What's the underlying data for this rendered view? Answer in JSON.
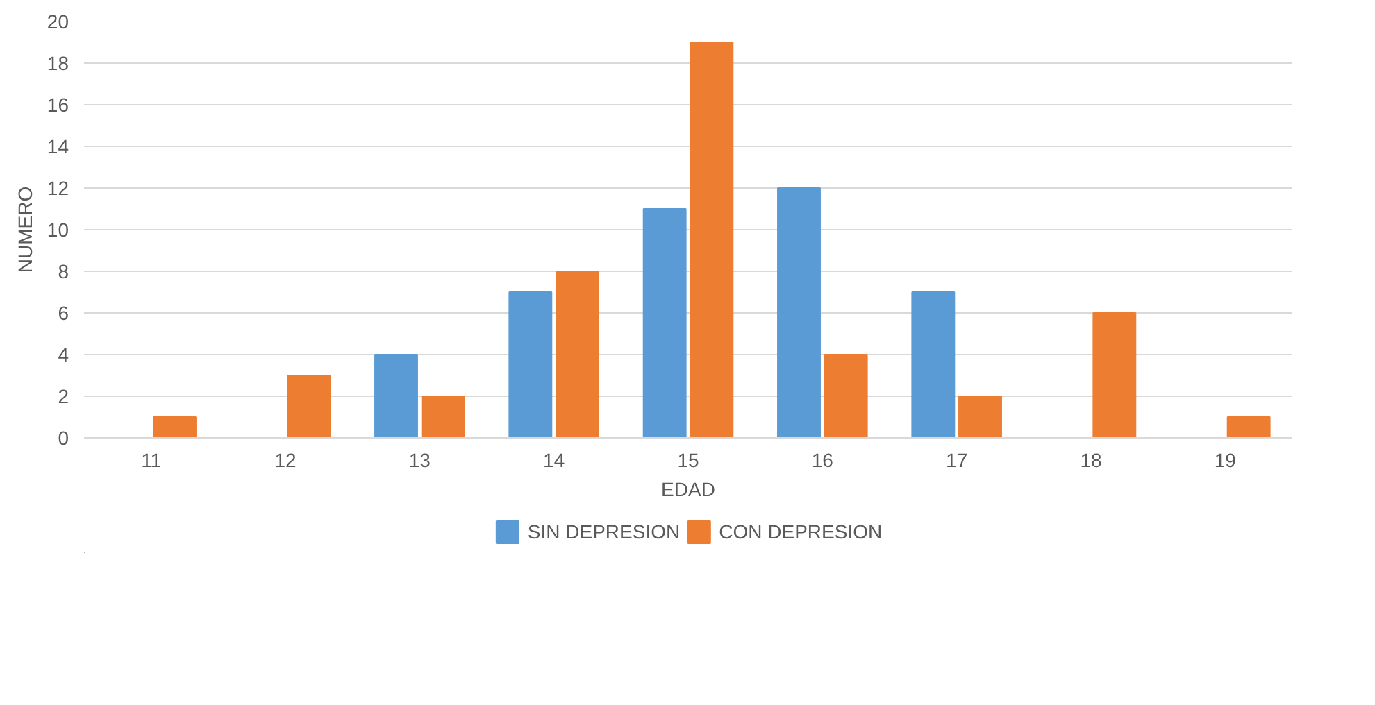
{
  "chart_data": {
    "type": "bar",
    "xlabel": "EDAD",
    "ylabel": "NUMERO",
    "categories": [
      "11",
      "12",
      "13",
      "14",
      "15",
      "16",
      "17",
      "18",
      "19"
    ],
    "series": [
      {
        "name": "SIN DEPRESION",
        "color": "#5b9bd5",
        "values": [
          0,
          0,
          4,
          7,
          11,
          12,
          7,
          0,
          0
        ]
      },
      {
        "name": "CON DEPRESION",
        "color": "#ed7d31",
        "values": [
          1,
          3,
          2,
          8,
          19,
          4,
          2,
          6,
          1
        ]
      }
    ],
    "ylim": [
      0,
      20
    ],
    "yticks": [
      0,
      2,
      4,
      6,
      8,
      10,
      12,
      14,
      16,
      18,
      20
    ],
    "grid": "y",
    "legend": "bottom"
  }
}
